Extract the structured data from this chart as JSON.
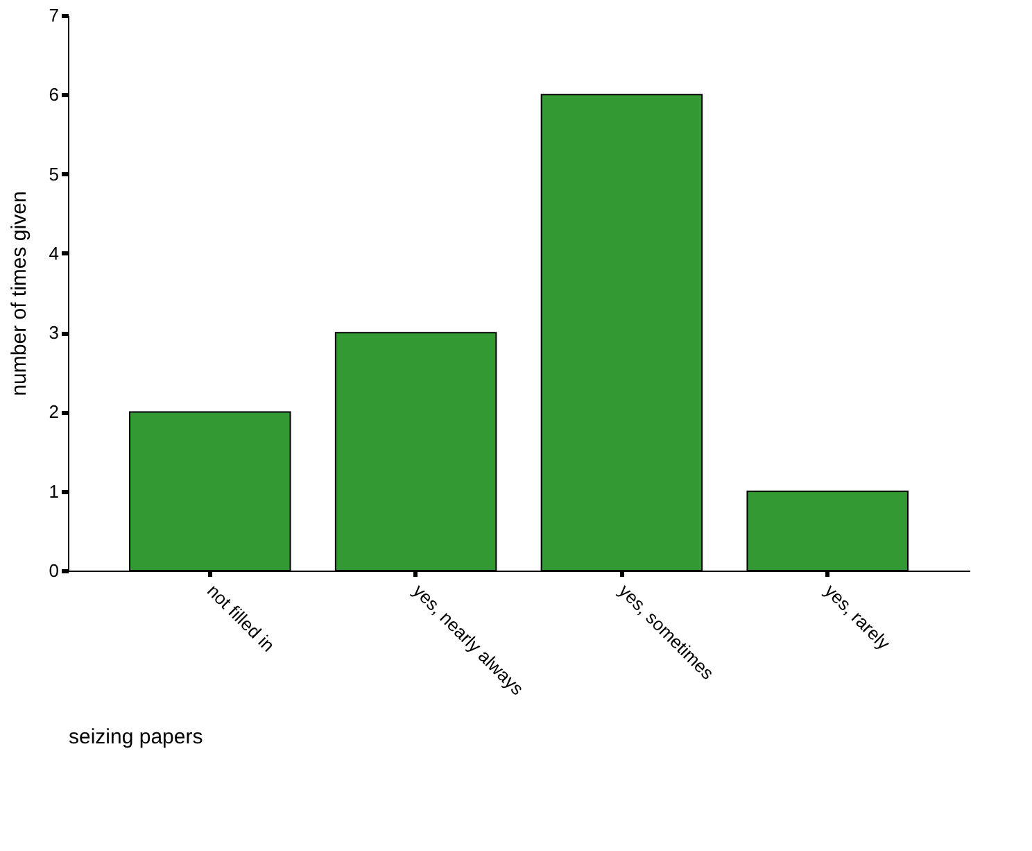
{
  "chart_data": {
    "type": "bar",
    "xlabel": "seizing papers",
    "ylabel": "number of times given",
    "categories": [
      "not filled in",
      "yes, nearly always",
      "yes, sometimes",
      "yes, rarely"
    ],
    "values": [
      2,
      3,
      6,
      1
    ],
    "color": "#339933",
    "ylim": [
      0,
      7
    ],
    "yticks": [
      0,
      1,
      2,
      3,
      4,
      5,
      6,
      7
    ],
    "grid": false
  }
}
